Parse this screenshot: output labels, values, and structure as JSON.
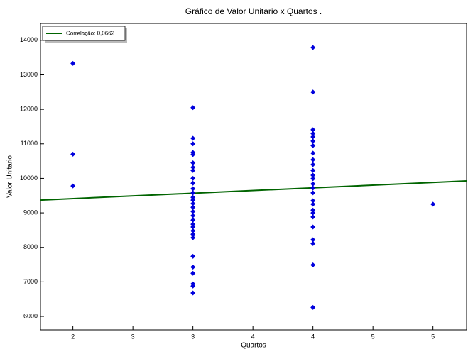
{
  "chart_data": {
    "type": "scatter",
    "title": "Gráfico de Valor Unitario x Quartos .",
    "xlabel": "Quartos",
    "ylabel": "Valor Unitario",
    "xlim": [
      1.73,
      5.28
    ],
    "ylim": [
      5610,
      14490
    ],
    "xticks": [
      2,
      {
        "value": 2.5,
        "label": "3"
      },
      3,
      {
        "value": 3.5,
        "label": "4"
      },
      4,
      {
        "value": 4.5,
        "label": "5"
      },
      5
    ],
    "yticks": [
      6000,
      7000,
      8000,
      9000,
      10000,
      11000,
      12000,
      13000,
      14000
    ],
    "series": [
      {
        "color": "#0000dd",
        "x": [
          2,
          2,
          2,
          3,
          3,
          3,
          3,
          3,
          3,
          3,
          3,
          3,
          3,
          3,
          3,
          3,
          3,
          3,
          3,
          3,
          3,
          3,
          3,
          3,
          3,
          3,
          3,
          3,
          3,
          3,
          3,
          3,
          3,
          4,
          4,
          4,
          4,
          4,
          4,
          4,
          4,
          4,
          4,
          4,
          4,
          4,
          4,
          4,
          4,
          4,
          4,
          4,
          4,
          4,
          4,
          4,
          4,
          4,
          4,
          5
        ],
        "values": [
          13330,
          10700,
          9780,
          12050,
          11160,
          11000,
          10750,
          10690,
          10450,
          10320,
          10230,
          10000,
          9860,
          9700,
          9580,
          9450,
          9370,
          9270,
          9160,
          9040,
          8920,
          8790,
          8670,
          8590,
          8480,
          8380,
          8280,
          7740,
          7430,
          7250,
          6940,
          6880,
          6680,
          13790,
          12500,
          11410,
          11300,
          11200,
          11080,
          10950,
          10730,
          10540,
          10400,
          10230,
          10090,
          9990,
          9840,
          9720,
          9580,
          9350,
          9250,
          9080,
          9000,
          8880,
          8590,
          8220,
          8110,
          7490,
          6260,
          9250
        ]
      }
    ],
    "trend": {
      "name": "Correlação: 0,0662",
      "color": "#006400",
      "x": [
        1.73,
        5.28
      ],
      "values": [
        9370,
        9926
      ]
    },
    "legend": "upper left"
  }
}
